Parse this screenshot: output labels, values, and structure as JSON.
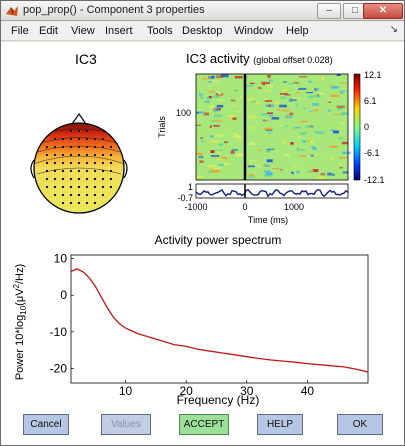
{
  "window": {
    "title": "pop_prop() - Component 3 properties",
    "controls": {
      "minimize": "–",
      "maximize": "□",
      "close": "✕"
    }
  },
  "menu": {
    "items": [
      "File",
      "Edit",
      "View",
      "Insert",
      "Tools",
      "Desktop",
      "Window",
      "Help"
    ],
    "arrow": "↘"
  },
  "topomap": {
    "title": "IC3"
  },
  "erpimage": {
    "title": "IC3 activity",
    "subtitle": "(global offset 0.028)",
    "ylabel": "Trials",
    "ytick": "100",
    "xlabel": "Time (ms)",
    "xticks": [
      "-1000",
      "0",
      "1000"
    ],
    "erp_ticks": [
      "1",
      "-0.7"
    ],
    "colorbar_ticks": [
      "12.1",
      "6.1",
      "0",
      "-6.1",
      "-12.1"
    ]
  },
  "chart_data": {
    "type": "line",
    "title": "Activity power spectrum",
    "xlabel": "Frequency (Hz)",
    "ylabel": "Power 10*log10(μV²/Hz)",
    "ylabel_parts": {
      "main": "Power 10*log",
      "sub": "10",
      "mid": "(μV",
      "sup": "2",
      "end": "/Hz)"
    },
    "xlim": [
      1,
      50
    ],
    "ylim": [
      -24,
      11
    ],
    "xticks": [
      10,
      20,
      30,
      40
    ],
    "yticks": [
      10,
      0,
      -10,
      -20
    ],
    "color": "#c01818",
    "series": [
      {
        "x": [
          1,
          2,
          3,
          4,
          5,
          6,
          7,
          8,
          9,
          10,
          12,
          14,
          16,
          18,
          20,
          22,
          24,
          26,
          28,
          30,
          32,
          34,
          36,
          38,
          40,
          42,
          44,
          46,
          48,
          50
        ],
        "values": [
          6.5,
          7.2,
          6.4,
          4.8,
          2.5,
          -0.5,
          -3.5,
          -6.0,
          -7.8,
          -9.0,
          -10.5,
          -11.5,
          -12.5,
          -13.5,
          -14.0,
          -14.8,
          -15.3,
          -15.8,
          -16.3,
          -16.8,
          -17.3,
          -17.7,
          -18.0,
          -18.3,
          -18.7,
          -19.0,
          -19.3,
          -19.6,
          -20.2,
          -21.0
        ]
      }
    ]
  },
  "buttons": {
    "cancel": "Cancel",
    "values": "Values",
    "accept": "ACCEPT",
    "help": "HELP",
    "ok": "OK"
  }
}
